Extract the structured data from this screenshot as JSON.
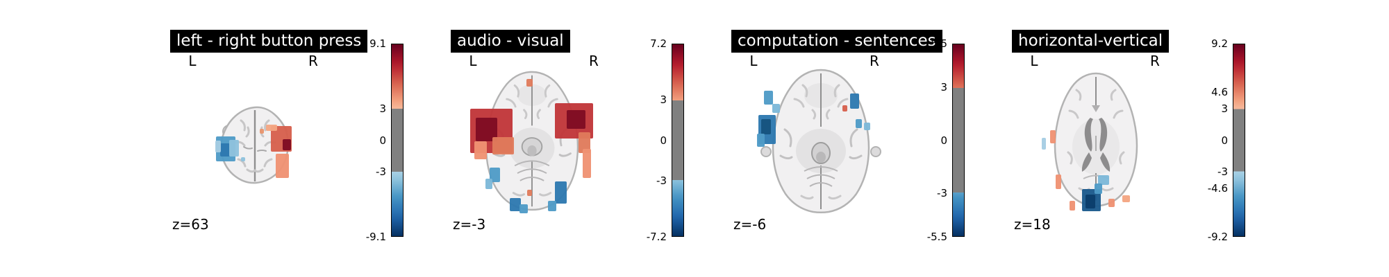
{
  "figure": {
    "background": "#ffffff",
    "colormap": {
      "name": "RdBu_r",
      "anchors_top_to_bottom": [
        "#67001f",
        "#b2182b",
        "#d6604d",
        "#f4a582",
        "#fddbc7",
        "#f7f7f7",
        "#d1e5f0",
        "#92c5de",
        "#4393c3",
        "#2166ac",
        "#053061"
      ],
      "masked_gray": "#808080"
    }
  },
  "chart_data": {
    "type": "heatmap",
    "subtype": "fmri_axial_stat_maps",
    "view": "axial",
    "panels": [
      {
        "title": "left - right button press",
        "left_label": "L",
        "right_label": "R",
        "slice_label": "z=63",
        "slice_z": 63,
        "vmax": 9.1,
        "vmin": -9.1,
        "threshold": 3,
        "colorbar_ticks": [
          {
            "label": "9.1",
            "value": 9.1
          },
          {
            "label": "3",
            "value": 3
          },
          {
            "label": "0",
            "value": 0
          },
          {
            "label": "-3",
            "value": -3
          },
          {
            "label": "-9.1",
            "value": -9.1
          }
        ],
        "blobs": [
          {
            "x": -0.35,
            "y": 0.05,
            "w": 0.23,
            "h": 0.3,
            "c": "#4f9bc7"
          },
          {
            "x": -0.36,
            "y": 0.06,
            "w": 0.12,
            "h": 0.16,
            "c": "#2e79b0"
          },
          {
            "x": -0.25,
            "y": 0.04,
            "w": 0.12,
            "h": 0.2,
            "c": "#8fc2dd"
          },
          {
            "x": -0.44,
            "y": 0.02,
            "w": 0.07,
            "h": 0.14,
            "c": "#a5cde3"
          },
          {
            "x": 0.32,
            "y": -0.07,
            "w": 0.25,
            "h": 0.3,
            "c": "#d6604d"
          },
          {
            "x": 0.38,
            "y": 0.0,
            "w": 0.1,
            "h": 0.13,
            "c": "#7f0c23"
          },
          {
            "x": 0.33,
            "y": 0.25,
            "w": 0.16,
            "h": 0.28,
            "c": "#ef9273"
          },
          {
            "x": 0.2,
            "y": -0.2,
            "w": 0.14,
            "h": 0.08,
            "c": "#f4a582"
          },
          {
            "x": 0.08,
            "y": -0.16,
            "w": 0.05,
            "h": 0.05,
            "c": "#e8956e"
          },
          {
            "x": -0.14,
            "y": 0.17,
            "w": 0.05,
            "h": 0.05,
            "c": "#8fc2dd"
          }
        ]
      },
      {
        "title": "audio - visual",
        "left_label": "L",
        "right_label": "R",
        "slice_label": "z=-3",
        "slice_z": -3,
        "vmax": 7.2,
        "vmin": -7.2,
        "threshold": 3,
        "colorbar_ticks": [
          {
            "label": "7.2",
            "value": 7.2
          },
          {
            "label": "3",
            "value": 3
          },
          {
            "label": "0",
            "value": 0
          },
          {
            "label": "-3",
            "value": -3
          },
          {
            "label": "-7.2",
            "value": -7.2
          }
        ],
        "blobs": [
          {
            "x": -0.34,
            "y": -0.06,
            "w": 0.36,
            "h": 0.3,
            "c": "#c13639"
          },
          {
            "x": -0.38,
            "y": -0.07,
            "w": 0.18,
            "h": 0.16,
            "c": "#7f0c23"
          },
          {
            "x": -0.24,
            "y": 0.04,
            "w": 0.18,
            "h": 0.12,
            "c": "#e07b5c"
          },
          {
            "x": -0.43,
            "y": 0.07,
            "w": 0.1,
            "h": 0.12,
            "c": "#ef9273"
          },
          {
            "x": 0.35,
            "y": -0.13,
            "w": 0.32,
            "h": 0.24,
            "c": "#c13639"
          },
          {
            "x": 0.37,
            "y": -0.14,
            "w": 0.16,
            "h": 0.13,
            "c": "#7f0c23"
          },
          {
            "x": 0.44,
            "y": 0.02,
            "w": 0.1,
            "h": 0.14,
            "c": "#e07b5c"
          },
          {
            "x": 0.46,
            "y": 0.16,
            "w": 0.07,
            "h": 0.2,
            "c": "#ef9273"
          },
          {
            "x": -0.02,
            "y": -0.39,
            "w": 0.05,
            "h": 0.05,
            "c": "#e07b5c"
          },
          {
            "x": -0.31,
            "y": 0.24,
            "w": 0.09,
            "h": 0.1,
            "c": "#4f9bc7"
          },
          {
            "x": -0.36,
            "y": 0.3,
            "w": 0.06,
            "h": 0.07,
            "c": "#7db8d8"
          },
          {
            "x": -0.14,
            "y": 0.44,
            "w": 0.09,
            "h": 0.09,
            "c": "#2e79b0"
          },
          {
            "x": -0.07,
            "y": 0.47,
            "w": 0.07,
            "h": 0.06,
            "c": "#4f9bc7"
          },
          {
            "x": 0.24,
            "y": 0.36,
            "w": 0.1,
            "h": 0.15,
            "c": "#2e79b0"
          },
          {
            "x": 0.17,
            "y": 0.45,
            "w": 0.07,
            "h": 0.07,
            "c": "#4f9bc7"
          },
          {
            "x": -0.02,
            "y": 0.36,
            "w": 0.04,
            "h": 0.04,
            "c": "#e07b5c"
          }
        ]
      },
      {
        "title": "computation - sentences",
        "left_label": "L",
        "right_label": "R",
        "slice_label": "z=-6",
        "slice_z": -6,
        "vmax": 5.5,
        "vmin": -5.5,
        "threshold": 3,
        "colorbar_ticks": [
          {
            "label": "5.5",
            "value": 5.5
          },
          {
            "label": "3",
            "value": 3
          },
          {
            "label": "0",
            "value": 0
          },
          {
            "label": "-3",
            "value": -3
          },
          {
            "label": "-5.5",
            "value": -5.5
          }
        ],
        "blobs": [
          {
            "x": -0.42,
            "y": -0.28,
            "w": 0.07,
            "h": 0.09,
            "c": "#4f9bc7"
          },
          {
            "x": -0.36,
            "y": -0.21,
            "w": 0.06,
            "h": 0.06,
            "c": "#7db8d8"
          },
          {
            "x": -0.43,
            "y": -0.07,
            "w": 0.14,
            "h": 0.19,
            "c": "#2e79b0"
          },
          {
            "x": -0.44,
            "y": -0.09,
            "w": 0.08,
            "h": 0.1,
            "c": "#16537f"
          },
          {
            "x": -0.48,
            "y": 0.0,
            "w": 0.06,
            "h": 0.09,
            "c": "#4f9bc7"
          },
          {
            "x": 0.27,
            "y": -0.26,
            "w": 0.07,
            "h": 0.1,
            "c": "#2e79b0"
          },
          {
            "x": 0.3,
            "y": -0.11,
            "w": 0.05,
            "h": 0.06,
            "c": "#4f9bc7"
          },
          {
            "x": 0.37,
            "y": -0.09,
            "w": 0.05,
            "h": 0.05,
            "c": "#7db8d8"
          },
          {
            "x": 0.19,
            "y": -0.21,
            "w": 0.04,
            "h": 0.04,
            "c": "#d6604d"
          }
        ]
      },
      {
        "title": "horizontal-vertical",
        "left_label": "L",
        "right_label": "R",
        "slice_label": "z=18",
        "slice_z": 18,
        "vmax": 9.2,
        "vmin": -9.2,
        "threshold": 3,
        "colorbar_ticks": [
          {
            "label": "9.2",
            "value": 9.2
          },
          {
            "label": "4.6",
            "value": 4.6
          },
          {
            "label": "3",
            "value": 3
          },
          {
            "label": "0",
            "value": 0
          },
          {
            "label": "-3",
            "value": -3
          },
          {
            "label": "-4.6",
            "value": -4.6
          },
          {
            "label": "-9.2",
            "value": -9.2
          }
        ],
        "blobs": [
          {
            "x": -0.04,
            "y": 0.43,
            "w": 0.17,
            "h": 0.16,
            "c": "#1b5a8c"
          },
          {
            "x": -0.05,
            "y": 0.44,
            "w": 0.09,
            "h": 0.1,
            "c": "#0b3d6b"
          },
          {
            "x": 0.07,
            "y": 0.29,
            "w": 0.1,
            "h": 0.07,
            "c": "#7db8d8"
          },
          {
            "x": 0.02,
            "y": 0.35,
            "w": 0.07,
            "h": 0.07,
            "c": "#4f9bc7"
          },
          {
            "x": -0.39,
            "y": -0.02,
            "w": 0.05,
            "h": 0.09,
            "c": "#ef9273"
          },
          {
            "x": -0.47,
            "y": 0.03,
            "w": 0.04,
            "h": 0.08,
            "c": "#a5cde3"
          },
          {
            "x": -0.34,
            "y": 0.3,
            "w": 0.05,
            "h": 0.1,
            "c": "#ef9273"
          },
          {
            "x": -0.21,
            "y": 0.47,
            "w": 0.05,
            "h": 0.07,
            "c": "#ef9273"
          },
          {
            "x": 0.14,
            "y": 0.45,
            "w": 0.06,
            "h": 0.06,
            "c": "#ef9273"
          },
          {
            "x": 0.27,
            "y": 0.42,
            "w": 0.07,
            "h": 0.05,
            "c": "#f4a582"
          }
        ]
      }
    ]
  }
}
